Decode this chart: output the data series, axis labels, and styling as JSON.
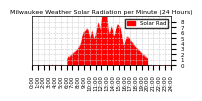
{
  "title": "Milwaukee Weather Solar Radiation per Minute (24 Hours)",
  "background_color": "#ffffff",
  "plot_bg_color": "#ffffff",
  "bar_color": "#ff0000",
  "legend_label": "Solar Rad",
  "legend_color": "#ff0000",
  "xlim": [
    0,
    1440
  ],
  "ylim": [
    0,
    9
  ],
  "yticks": [
    0,
    1,
    2,
    3,
    4,
    5,
    6,
    7,
    8
  ],
  "xtick_positions": [
    0,
    60,
    120,
    180,
    240,
    300,
    360,
    420,
    480,
    540,
    600,
    660,
    720,
    780,
    840,
    900,
    960,
    1020,
    1080,
    1140,
    1200,
    1260,
    1320,
    1380,
    1440
  ],
  "xtick_labels": [
    "0:00",
    "1:00",
    "2:00",
    "3:00",
    "4:00",
    "5:00",
    "6:00",
    "7:00",
    "8:00",
    "9:00",
    "10:00",
    "11:00",
    "12:00",
    "13:00",
    "14:00",
    "15:00",
    "16:00",
    "17:00",
    "18:00",
    "19:00",
    "20:00",
    "21:00",
    "22:00",
    "23:00",
    "24:00"
  ],
  "grid_color": "#cccccc",
  "grid_style": "--",
  "font_size": 4,
  "title_font_size": 4.5
}
